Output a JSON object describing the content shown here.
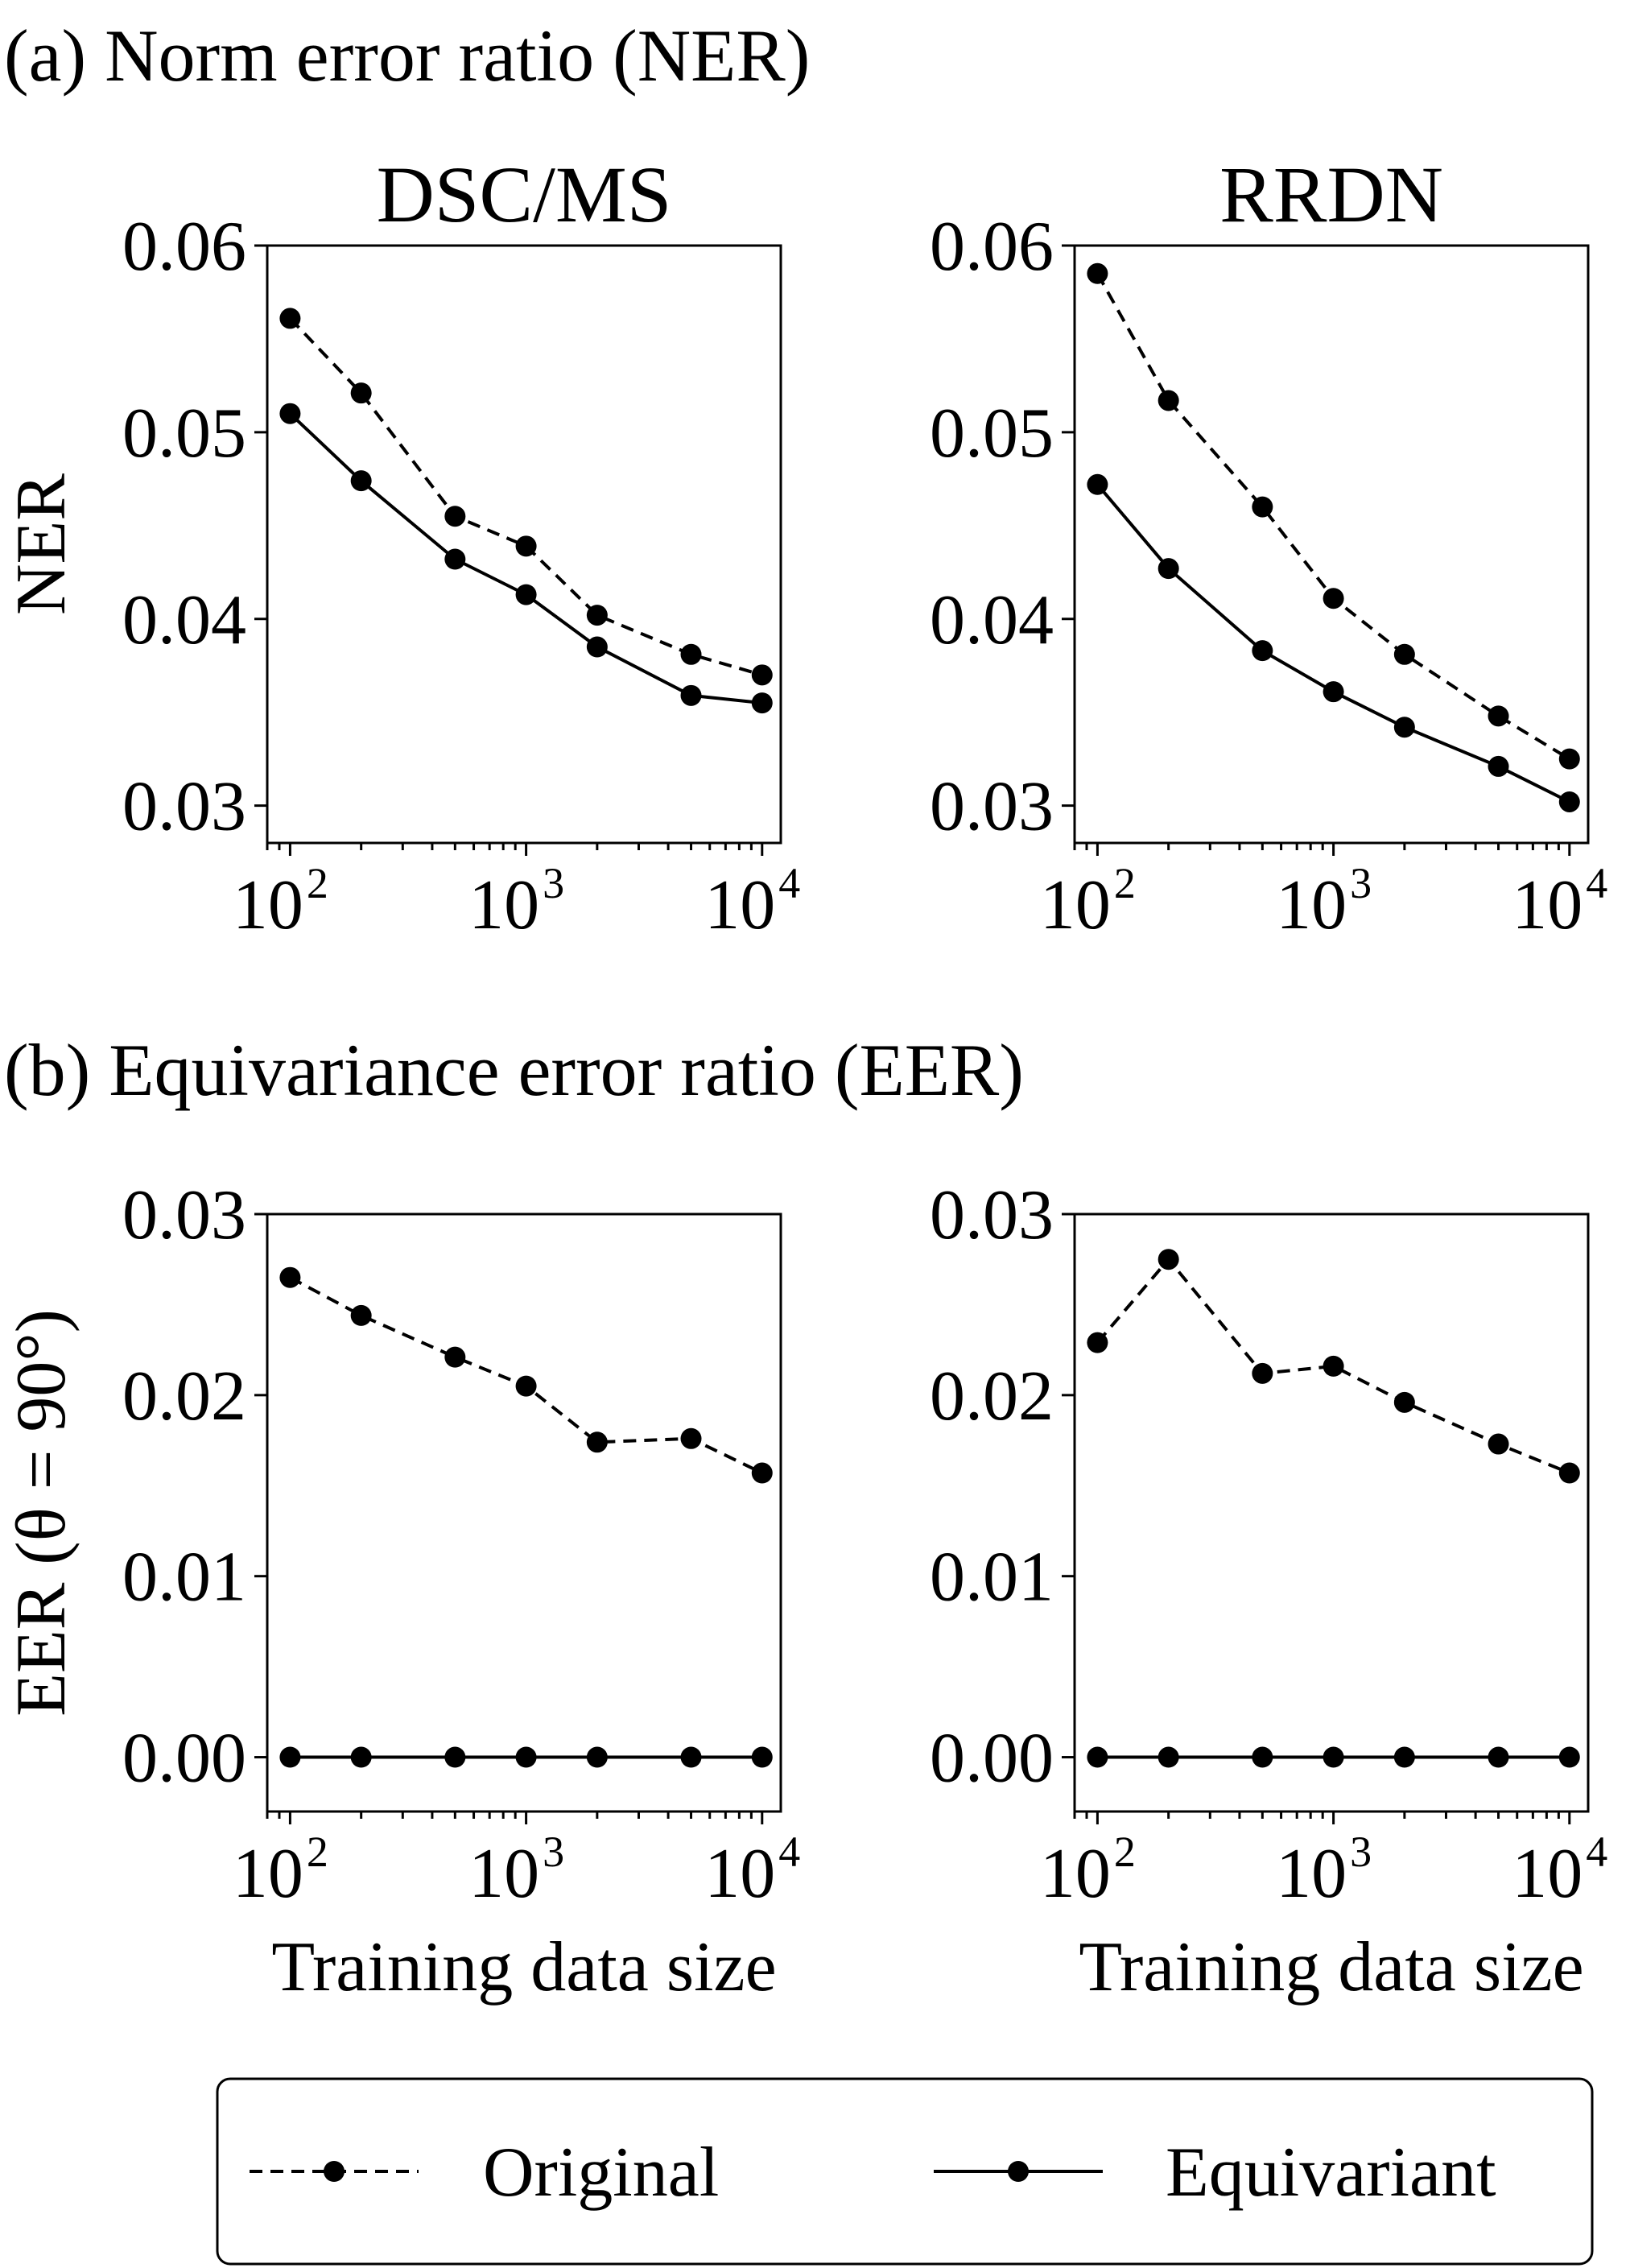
{
  "sections": [
    {
      "title": "(a) Norm error ratio (NER)"
    },
    {
      "title": "(b) Equivariance error ratio (EER)"
    }
  ],
  "legend": {
    "original": "Original",
    "equivariant": "Equivariant"
  },
  "chart_data": [
    {
      "type": "line",
      "title": "DSC/MS",
      "section": 0,
      "xlabel": "",
      "ylabel": "NER",
      "xscale": "log",
      "x": [
        100,
        200,
        500,
        1000,
        2000,
        5000,
        10000
      ],
      "xlim": [
        80,
        12000
      ],
      "ylim": [
        0.028,
        0.06
      ],
      "yticks": [
        "0.03",
        "0.04",
        "0.05",
        "0.06"
      ],
      "ytick_values": [
        0.03,
        0.04,
        0.05,
        0.06
      ],
      "xticks_exp": [
        "2",
        "3",
        "4"
      ],
      "series": [
        {
          "name": "Original",
          "style": "dashed",
          "values": [
            0.0561,
            0.0521,
            0.0455,
            0.0439,
            0.0402,
            0.0381,
            0.037
          ]
        },
        {
          "name": "Equivariant",
          "style": "solid",
          "values": [
            0.051,
            0.0474,
            0.0432,
            0.0413,
            0.0385,
            0.0359,
            0.0355
          ]
        }
      ],
      "legend": "bottom-center"
    },
    {
      "type": "line",
      "title": "RRDN",
      "section": 0,
      "xlabel": "",
      "ylabel": "",
      "xscale": "log",
      "x": [
        100,
        200,
        500,
        1000,
        2000,
        5000,
        10000
      ],
      "xlim": [
        80,
        12000
      ],
      "ylim": [
        0.028,
        0.06
      ],
      "yticks": [
        "0.03",
        "0.04",
        "0.05",
        "0.06"
      ],
      "ytick_values": [
        0.03,
        0.04,
        0.05,
        0.06
      ],
      "xticks_exp": [
        "2",
        "3",
        "4"
      ],
      "series": [
        {
          "name": "Original",
          "style": "dashed",
          "values": [
            0.0585,
            0.0517,
            0.046,
            0.0411,
            0.0381,
            0.0348,
            0.0325
          ]
        },
        {
          "name": "Equivariant",
          "style": "solid",
          "values": [
            0.0472,
            0.0427,
            0.0383,
            0.0361,
            0.0342,
            0.0321,
            0.0302
          ]
        }
      ]
    },
    {
      "type": "line",
      "title": "",
      "section": 1,
      "xlabel": "Training data size",
      "ylabel": "EER (θ = 90°)",
      "xscale": "log",
      "x": [
        100,
        200,
        500,
        1000,
        2000,
        5000,
        10000
      ],
      "xlim": [
        80,
        12000
      ],
      "ylim": [
        -0.003,
        0.03
      ],
      "yticks": [
        "0.00",
        "0.01",
        "0.02",
        "0.03"
      ],
      "ytick_values": [
        0.0,
        0.01,
        0.02,
        0.03
      ],
      "xticks_exp": [
        "2",
        "3",
        "4"
      ],
      "series": [
        {
          "name": "Original",
          "style": "dashed",
          "values": [
            0.0265,
            0.0244,
            0.0221,
            0.0205,
            0.0174,
            0.0176,
            0.0157
          ]
        },
        {
          "name": "Equivariant",
          "style": "solid",
          "values": [
            0.0,
            0.0,
            0.0,
            0.0,
            0.0,
            0.0,
            0.0
          ]
        }
      ]
    },
    {
      "type": "line",
      "title": "",
      "section": 1,
      "xlabel": "Training data size",
      "ylabel": "",
      "xscale": "log",
      "x": [
        100,
        200,
        500,
        1000,
        2000,
        5000,
        10000
      ],
      "xlim": [
        80,
        12000
      ],
      "ylim": [
        -0.003,
        0.03
      ],
      "yticks": [
        "0.00",
        "0.01",
        "0.02",
        "0.03"
      ],
      "ytick_values": [
        0.0,
        0.01,
        0.02,
        0.03
      ],
      "xticks_exp": [
        "2",
        "3",
        "4"
      ],
      "series": [
        {
          "name": "Original",
          "style": "dashed",
          "values": [
            0.0229,
            0.0275,
            0.0212,
            0.0216,
            0.0196,
            0.0173,
            0.0157
          ]
        },
        {
          "name": "Equivariant",
          "style": "solid",
          "values": [
            0.0,
            0.0,
            0.0,
            0.0,
            0.0,
            0.0,
            0.0
          ]
        }
      ]
    }
  ]
}
